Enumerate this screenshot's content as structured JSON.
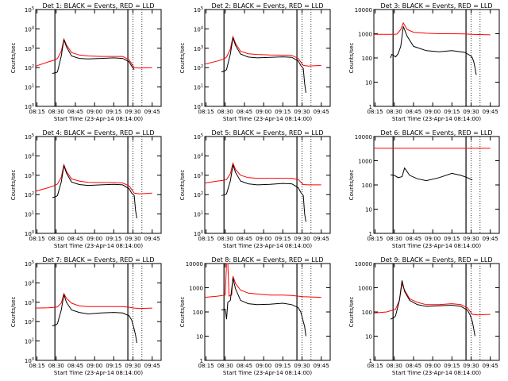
{
  "chart_data": [
    {
      "type": "line",
      "title": "Det 1: BLACK = Events, RED = LLD",
      "xlabel": "Start Time (23-Apr-14 08:14:00)",
      "ylabel": "Counts/sec",
      "yscale": "log",
      "ylim": [
        1,
        100000
      ],
      "yticks": [
        "10^0",
        "10^1",
        "10^2",
        "10^3",
        "10^4",
        "10^5"
      ],
      "xticks": [
        "08:15",
        "08:30",
        "08:45",
        "09:00",
        "09:15",
        "09:30",
        "09:45"
      ],
      "series": [
        {
          "color": "#ff0000",
          "x": [
            "08:14",
            "08:24",
            "08:29",
            "08:31",
            "08:34",
            "08:36",
            "08:38",
            "08:42",
            "08:48",
            "08:55",
            "09:05",
            "09:15",
            "09:22",
            "09:27",
            "09:31",
            "09:35",
            "09:45"
          ],
          "values": [
            120,
            200,
            250,
            300,
            700,
            3000,
            1500,
            600,
            450,
            400,
            380,
            380,
            380,
            250,
            100,
            95,
            100
          ]
        },
        {
          "color": "#000000",
          "x": [
            "08:27",
            "08:30",
            "08:31",
            "08:34",
            "08:36",
            "08:38",
            "08:42",
            "08:48",
            "08:55",
            "09:05",
            "09:15",
            "09:22",
            "09:27",
            "09:29",
            "09:31"
          ],
          "values": [
            50,
            55,
            60,
            400,
            2800,
            1200,
            400,
            300,
            280,
            300,
            320,
            300,
            200,
            120,
            80
          ]
        }
      ]
    },
    {
      "type": "line",
      "title": "Det 2: BLACK = Events, RED = LLD",
      "xlabel": "Start Time (23-Apr-14 08:14:00)",
      "ylabel": "Counts/sec",
      "yscale": "log",
      "ylim": [
        1,
        100000
      ],
      "yticks": [
        "10^0",
        "10^1",
        "10^2",
        "10^3",
        "10^4",
        "10^5"
      ],
      "xticks": [
        "08:15",
        "08:30",
        "08:45",
        "09:00",
        "09:15",
        "09:30",
        "09:45"
      ],
      "series": [
        {
          "color": "#ff0000",
          "x": [
            "08:14",
            "08:24",
            "08:29",
            "08:31",
            "08:34",
            "08:36",
            "08:38",
            "08:42",
            "08:48",
            "08:55",
            "09:05",
            "09:15",
            "09:22",
            "09:27",
            "09:31",
            "09:35",
            "09:45"
          ],
          "values": [
            150,
            220,
            280,
            350,
            900,
            4000,
            1800,
            700,
            520,
            480,
            450,
            440,
            430,
            300,
            130,
            120,
            130
          ]
        },
        {
          "color": "#000000",
          "x": [
            "08:27",
            "08:30",
            "08:31",
            "08:34",
            "08:36",
            "08:38",
            "08:42",
            "08:48",
            "08:55",
            "09:05",
            "09:15",
            "09:22",
            "09:27",
            "09:29",
            "09:31",
            "09:32",
            "09:33"
          ],
          "values": [
            60,
            70,
            80,
            500,
            3500,
            1400,
            500,
            350,
            320,
            340,
            360,
            340,
            220,
            130,
            90,
            15,
            5
          ]
        }
      ]
    },
    {
      "type": "line",
      "title": "Det 3: BLACK = Events, RED = LLD",
      "xlabel": "Start Time (23-Apr-14 08:14:00)",
      "ylabel": "Counts/sec",
      "yscale": "log",
      "ylim": [
        1,
        10000
      ],
      "yticks": [
        "1",
        "10",
        "100",
        "1000",
        "10000"
      ],
      "xticks": [
        "08:15",
        "08:30",
        "08:45",
        "09:00",
        "09:15",
        "09:30",
        "09:45"
      ],
      "series": [
        {
          "color": "#ff0000",
          "x": [
            "08:14",
            "08:28",
            "08:32",
            "08:35",
            "08:37",
            "08:40",
            "08:45",
            "08:55",
            "09:05",
            "09:15",
            "09:25",
            "09:30",
            "09:45"
          ],
          "values": [
            950,
            950,
            960,
            1500,
            2800,
            1500,
            1150,
            1050,
            1000,
            1000,
            980,
            950,
            900
          ]
        },
        {
          "color": "#000000",
          "x": [
            "08:27",
            "08:28",
            "08:31",
            "08:33",
            "08:35",
            "08:37",
            "08:40",
            "08:45",
            "08:55",
            "09:05",
            "09:15",
            "09:25",
            "09:30",
            "09:31",
            "09:32",
            "09:33",
            "09:34"
          ],
          "values": [
            100,
            140,
            110,
            150,
            300,
            2000,
            800,
            300,
            200,
            180,
            200,
            170,
            120,
            100,
            70,
            40,
            20
          ]
        }
      ]
    },
    {
      "type": "line",
      "title": "Det 4: BLACK = Events, RED = LLD",
      "xlabel": "Start Time (23-Apr-14 08:14:00)",
      "ylabel": "Counts/sec",
      "yscale": "log",
      "ylim": [
        1,
        100000
      ],
      "yticks": [
        "10^0",
        "10^1",
        "10^2",
        "10^3",
        "10^4",
        "10^5"
      ],
      "xticks": [
        "08:15",
        "08:30",
        "08:45",
        "09:00",
        "09:15",
        "09:30",
        "09:45"
      ],
      "series": [
        {
          "color": "#ff0000",
          "x": [
            "08:14",
            "08:24",
            "08:29",
            "08:31",
            "08:34",
            "08:36",
            "08:38",
            "08:42",
            "08:48",
            "08:55",
            "09:05",
            "09:15",
            "09:22",
            "09:27",
            "09:31",
            "09:35",
            "09:45"
          ],
          "values": [
            150,
            230,
            300,
            350,
            800,
            3500,
            1600,
            650,
            500,
            430,
            420,
            420,
            400,
            280,
            120,
            110,
            120
          ]
        },
        {
          "color": "#000000",
          "x": [
            "08:27",
            "08:30",
            "08:31",
            "08:34",
            "08:36",
            "08:38",
            "08:42",
            "08:48",
            "08:55",
            "09:05",
            "09:15",
            "09:22",
            "09:27",
            "09:29",
            "09:31",
            "09:32",
            "09:33"
          ],
          "values": [
            70,
            80,
            90,
            450,
            3200,
            1300,
            450,
            330,
            300,
            320,
            340,
            320,
            200,
            120,
            90,
            15,
            6
          ]
        }
      ]
    },
    {
      "type": "line",
      "title": "Det 5: BLACK = Events, RED = LLD",
      "xlabel": "Start Time (23-Apr-14 08:14:00)",
      "ylabel": "Counts/sec",
      "yscale": "log",
      "ylim": [
        1,
        100000
      ],
      "yticks": [
        "10^0",
        "10^1",
        "10^2",
        "10^3",
        "10^4",
        "10^5"
      ],
      "xticks": [
        "08:15",
        "08:30",
        "08:45",
        "09:00",
        "09:15",
        "09:30",
        "09:45"
      ],
      "series": [
        {
          "color": "#ff0000",
          "x": [
            "08:14",
            "08:24",
            "08:29",
            "08:31",
            "08:34",
            "08:36",
            "08:38",
            "08:42",
            "08:48",
            "08:55",
            "09:05",
            "09:15",
            "09:22",
            "09:27",
            "09:31",
            "09:35",
            "09:45"
          ],
          "values": [
            400,
            500,
            550,
            600,
            1200,
            4200,
            2000,
            1000,
            750,
            700,
            700,
            700,
            700,
            600,
            330,
            320,
            320
          ]
        },
        {
          "color": "#000000",
          "x": [
            "08:27",
            "08:30",
            "08:31",
            "08:34",
            "08:36",
            "08:38",
            "08:42",
            "08:48",
            "08:55",
            "09:05",
            "09:15",
            "09:22",
            "09:27",
            "09:29",
            "09:31",
            "09:32",
            "09:33"
          ],
          "values": [
            90,
            100,
            110,
            500,
            3500,
            1400,
            500,
            360,
            320,
            340,
            380,
            360,
            230,
            130,
            90,
            10,
            4
          ]
        }
      ]
    },
    {
      "type": "line",
      "title": "Det 6: BLACK = Events, RED = LLD",
      "xlabel": "Start Time (23-Apr-14 08:14:00)",
      "ylabel": "Counts/sec",
      "yscale": "log",
      "ylim": [
        1,
        10000
      ],
      "yticks": [
        "1",
        "10",
        "100",
        "1000",
        "10000"
      ],
      "xticks": [
        "08:15",
        "08:30",
        "08:45",
        "09:00",
        "09:15",
        "09:30",
        "09:45"
      ],
      "series": [
        {
          "color": "#ff0000",
          "x": [
            "08:14",
            "09:45"
          ],
          "values": [
            3300,
            3300
          ]
        },
        {
          "color": "#000000",
          "x": [
            "08:27",
            "08:30",
            "08:33",
            "08:36",
            "08:38",
            "08:42",
            "08:48",
            "08:55",
            "09:05",
            "09:15",
            "09:22",
            "09:27",
            "09:31"
          ],
          "values": [
            260,
            250,
            200,
            220,
            500,
            250,
            180,
            150,
            200,
            300,
            250,
            200,
            160
          ]
        }
      ]
    },
    {
      "type": "line",
      "title": "Det 7: BLACK = Events, RED = LLD",
      "xlabel": "Start Time (23-Apr-14 08:14:00)",
      "ylabel": "Counts/sec",
      "yscale": "log",
      "ylim": [
        1,
        100000
      ],
      "yticks": [
        "10^0",
        "10^1",
        "10^2",
        "10^3",
        "10^4",
        "10^5"
      ],
      "xticks": [
        "08:15",
        "08:30",
        "08:45",
        "09:00",
        "09:15",
        "09:30",
        "09:45"
      ],
      "series": [
        {
          "color": "#ff0000",
          "x": [
            "08:14",
            "08:24",
            "08:29",
            "08:31",
            "08:34",
            "08:36",
            "08:38",
            "08:42",
            "08:48",
            "08:55",
            "09:05",
            "09:15",
            "09:22",
            "09:27",
            "09:31",
            "09:35",
            "09:45"
          ],
          "values": [
            500,
            520,
            550,
            580,
            900,
            2800,
            1600,
            900,
            650,
            600,
            600,
            600,
            600,
            550,
            500,
            480,
            500
          ]
        },
        {
          "color": "#000000",
          "x": [
            "08:27",
            "08:30",
            "08:31",
            "08:34",
            "08:36",
            "08:38",
            "08:42",
            "08:48",
            "08:55",
            "09:05",
            "09:15",
            "09:22",
            "09:27",
            "09:29",
            "09:31",
            "09:32",
            "09:33"
          ],
          "values": [
            60,
            70,
            80,
            400,
            2500,
            1000,
            400,
            300,
            250,
            280,
            300,
            280,
            200,
            120,
            40,
            20,
            8
          ]
        }
      ]
    },
    {
      "type": "line",
      "title": "Det 8: BLACK = Events, RED = LLD",
      "xlabel": "Start Time (23-Apr-14 08:14:00)",
      "ylabel": "Counts/sec",
      "yscale": "log",
      "ylim": [
        1,
        10000
      ],
      "yticks": [
        "1",
        "10",
        "100",
        "1000",
        "10000"
      ],
      "xticks": [
        "08:15",
        "08:30",
        "08:45",
        "09:00",
        "09:15",
        "09:30",
        "09:45"
      ],
      "series": [
        {
          "color": "#ff0000",
          "x": [
            "08:14",
            "08:24",
            "08:30",
            "08:31",
            "08:32",
            "08:33",
            "08:34",
            "08:35",
            "08:36",
            "08:38",
            "08:42",
            "08:48",
            "08:55",
            "09:05",
            "09:15",
            "09:22",
            "09:27",
            "09:31",
            "09:35",
            "09:45"
          ],
          "values": [
            400,
            450,
            500,
            10000,
            10000,
            450,
            480,
            500,
            3000,
            1500,
            800,
            600,
            550,
            500,
            500,
            480,
            450,
            430,
            420,
            400
          ]
        },
        {
          "color": "#000000",
          "x": [
            "08:27",
            "08:30",
            "08:31",
            "08:32",
            "08:34",
            "08:36",
            "08:38",
            "08:42",
            "08:48",
            "08:55",
            "09:05",
            "09:15",
            "09:22",
            "09:27",
            "09:29",
            "09:31",
            "09:32",
            "09:33"
          ],
          "values": [
            120,
            130,
            50,
            250,
            300,
            2500,
            900,
            300,
            220,
            200,
            210,
            230,
            200,
            150,
            100,
            40,
            25,
            10
          ]
        }
      ]
    },
    {
      "type": "line",
      "title": "Det 9: BLACK = Events, RED = LLD",
      "xlabel": "Start Time (23-Apr-14 08:14:00)",
      "ylabel": "Counts/sec",
      "yscale": "log",
      "ylim": [
        1,
        10000
      ],
      "yticks": [
        "1",
        "10",
        "100",
        "1000",
        "10000"
      ],
      "xticks": [
        "08:15",
        "08:30",
        "08:45",
        "09:00",
        "09:15",
        "09:30",
        "09:45"
      ],
      "series": [
        {
          "color": "#ff0000",
          "x": [
            "08:14",
            "08:24",
            "08:29",
            "08:31",
            "08:34",
            "08:36",
            "08:38",
            "08:42",
            "08:48",
            "08:55",
            "09:05",
            "09:15",
            "09:22",
            "09:27",
            "09:31",
            "09:35",
            "09:45"
          ],
          "values": [
            90,
            100,
            120,
            130,
            300,
            1500,
            800,
            350,
            250,
            200,
            200,
            220,
            200,
            150,
            80,
            75,
            80
          ]
        },
        {
          "color": "#000000",
          "x": [
            "08:27",
            "08:30",
            "08:31",
            "08:34",
            "08:36",
            "08:38",
            "08:42",
            "08:48",
            "08:55",
            "09:05",
            "09:15",
            "09:22",
            "09:27",
            "09:29",
            "09:31",
            "09:32",
            "09:33"
          ],
          "values": [
            50,
            60,
            70,
            300,
            2000,
            700,
            300,
            200,
            170,
            180,
            190,
            170,
            120,
            80,
            40,
            20,
            10
          ]
        }
      ]
    }
  ]
}
